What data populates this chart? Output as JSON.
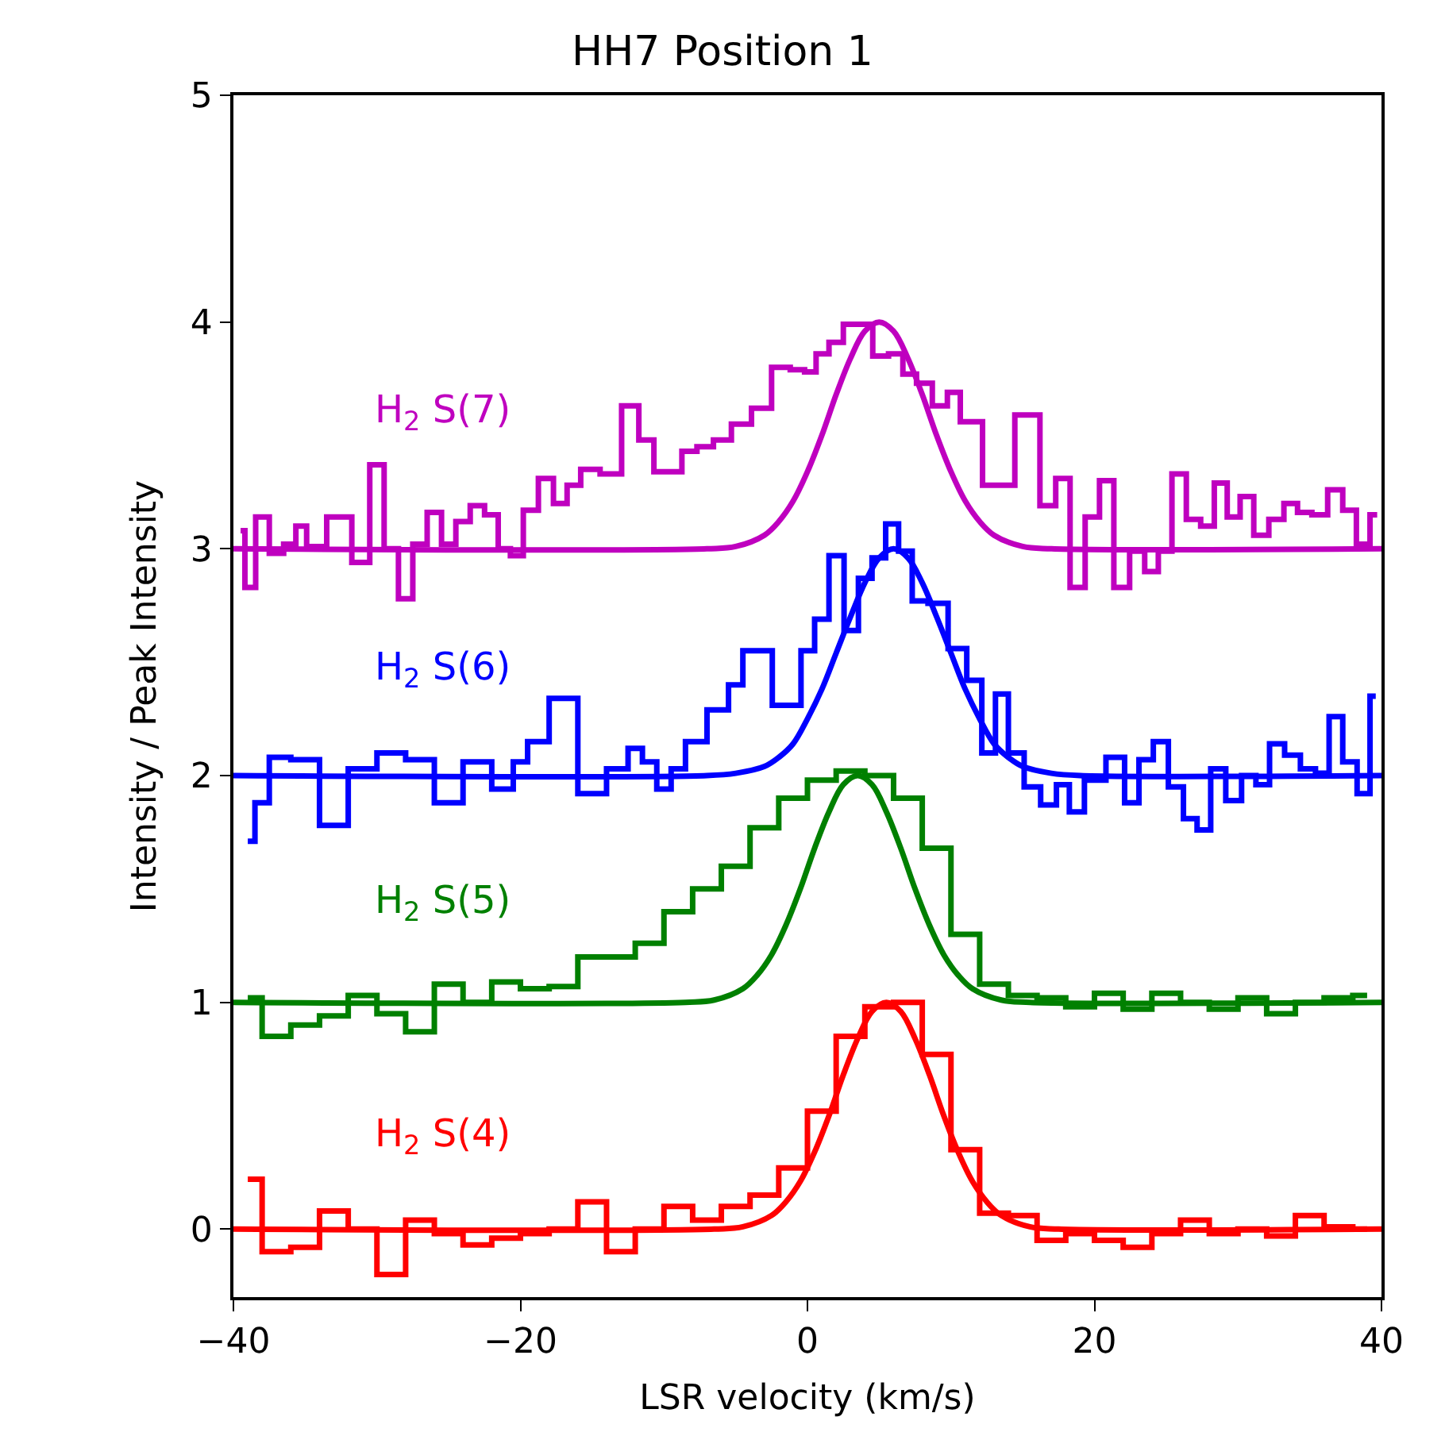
{
  "chart_data": {
    "type": "step",
    "title": "HH7 Position 1",
    "xlabel": "LSR velocity (km/s)",
    "ylabel": "Intensity / Peak Intensity",
    "xlim": [
      -40,
      40
    ],
    "ylim": [
      -0.3,
      5
    ],
    "xticks": [
      {
        "value": -40,
        "label": "−40"
      },
      {
        "value": -20,
        "label": "−20"
      },
      0,
      20,
      40
    ],
    "yticks": [
      0,
      1,
      2,
      3,
      4,
      5
    ],
    "legend": false,
    "series": [
      {
        "name": "H$_{2}$ S(4)",
        "color": "#ff0000",
        "x": [
          -39,
          -37,
          -35,
          -33,
          -31,
          -29,
          -27,
          -25,
          -23,
          -21,
          -19,
          -17,
          -15,
          -13,
          -11,
          -9,
          -7,
          -5,
          -3,
          -1,
          1,
          3,
          5,
          7,
          9,
          11,
          13,
          15,
          17,
          19,
          21,
          23,
          25,
          27,
          29,
          31,
          33,
          35,
          37,
          39
        ],
        "values": [
          0.22,
          -0.1,
          -0.08,
          0.08,
          0.0,
          -0.2,
          0.04,
          -0.02,
          -0.07,
          -0.04,
          -0.02,
          0.0,
          0.12,
          -0.1,
          0.0,
          0.1,
          0.04,
          0.1,
          0.15,
          0.27,
          0.52,
          0.85,
          0.98,
          1.0,
          0.77,
          0.35,
          0.07,
          0.06,
          -0.05,
          -0.02,
          -0.05,
          -0.08,
          -0.02,
          0.04,
          -0.02,
          0.0,
          -0.03,
          0.06,
          0.01,
          0.0
        ]
      },
      {
        "type": "line",
        "color": "#ff0000",
        "x": [
          -40,
          -6.5,
          -4.5,
          -2.5,
          -1.5,
          -0.5,
          0.5,
          1.5,
          2.5,
          3.5,
          4.5,
          5.5,
          6.5,
          7.5,
          8.5,
          9.5,
          10.5,
          11.5,
          12.5,
          13.5,
          15.5,
          17.5,
          40
        ],
        "values": [
          0,
          0.0,
          0.01,
          0.06,
          0.12,
          0.21,
          0.34,
          0.5,
          0.68,
          0.84,
          0.96,
          1,
          0.96,
          0.84,
          0.68,
          0.5,
          0.34,
          0.21,
          0.12,
          0.06,
          0.01,
          0.0,
          0
        ]
      },
      {
        "name": "H$_{2}$ S(5)",
        "color": "#008000",
        "x": [
          -39,
          -37,
          -35,
          -33,
          -31,
          -29,
          -27,
          -25,
          -23,
          -21,
          -19,
          -17,
          -15,
          -13,
          -11,
          -9,
          -7,
          -5,
          -3,
          -1,
          1,
          3,
          5,
          7,
          9,
          11,
          13,
          15,
          17,
          19,
          21,
          23,
          25,
          27,
          29,
          31,
          33,
          35,
          37,
          39
        ],
        "values": [
          1.02,
          0.85,
          0.9,
          0.94,
          1.03,
          0.95,
          0.87,
          1.08,
          1.0,
          1.09,
          1.06,
          1.07,
          1.2,
          1.2,
          1.26,
          1.4,
          1.5,
          1.6,
          1.77,
          1.9,
          1.98,
          2.02,
          2.0,
          1.9,
          1.68,
          1.3,
          1.08,
          1.03,
          1.02,
          0.98,
          1.04,
          0.97,
          1.04,
          1.0,
          0.97,
          1.02,
          0.95,
          1.0,
          1.02,
          1.03
        ]
      },
      {
        "type": "line",
        "color": "#008000",
        "x": [
          -40,
          -8.5,
          -6.5,
          -4.5,
          -3.5,
          -2.5,
          -1.5,
          -0.5,
          0.5,
          1.5,
          2.5,
          3.5,
          4.5,
          5.5,
          6.5,
          7.5,
          8.5,
          9.5,
          10.5,
          11.5,
          13.5,
          15.5,
          40
        ],
        "values": [
          1,
          1.0,
          1.01,
          1.06,
          1.12,
          1.21,
          1.34,
          1.5,
          1.68,
          1.84,
          1.96,
          2,
          1.96,
          1.84,
          1.68,
          1.5,
          1.34,
          1.21,
          1.12,
          1.06,
          1.01,
          1.0,
          1
        ]
      },
      {
        "name": "H$_{2}$ S(6)",
        "color": "#0000ff",
        "x": [
          -39,
          -38,
          -37,
          -35,
          -33,
          -31,
          -29,
          -27,
          -25,
          -23,
          -21,
          -20,
          -19,
          -17,
          -15,
          -13,
          -12,
          -11,
          -10,
          -9,
          -8,
          -6,
          -5,
          -4,
          -0.9,
          0,
          1,
          2,
          3.1,
          4,
          5,
          5.9,
          6.8,
          7.8,
          9,
          10.6,
          11.6,
          12.7,
          13.5,
          14.5,
          15.7,
          16.8,
          17.9,
          18.6,
          20,
          21.6,
          22.6,
          23.6,
          24.6,
          25.7,
          26.7,
          27.6,
          28.6,
          29.7,
          30.8,
          31.7,
          32.7,
          33.8,
          34.9,
          35.9,
          36.8,
          37.8,
          38.8,
          39.6
        ],
        "values": [
          1.71,
          1.88,
          2.08,
          2.07,
          1.78,
          2.03,
          2.1,
          2.07,
          1.88,
          2.06,
          1.94,
          2.06,
          2.15,
          2.34,
          1.92,
          2.03,
          2.12,
          2.06,
          1.94,
          2.03,
          2.15,
          2.29,
          2.4,
          2.55,
          2.31,
          2.55,
          2.69,
          2.97,
          2.64,
          2.87,
          2.96,
          3.11,
          2.99,
          2.77,
          2.76,
          2.56,
          2.42,
          2.1,
          2.36,
          2.1,
          1.95,
          1.87,
          1.96,
          1.84,
          1.98,
          2.08,
          1.88,
          2.07,
          2.15,
          1.95,
          1.81,
          1.76,
          2.03,
          1.89,
          2.0,
          1.96,
          2.14,
          2.09,
          2.03,
          2.01,
          2.26,
          2.06,
          1.92,
          2.35
        ]
      },
      {
        "type": "line",
        "color": "#0000ff",
        "x": [
          -40,
          -7,
          -5,
          -3,
          -2,
          -1,
          0,
          1,
          2,
          3,
          4,
          5,
          6,
          7,
          8,
          9,
          10,
          11,
          12,
          13,
          14,
          15,
          17,
          19,
          40
        ],
        "values": [
          2,
          2.0,
          2.01,
          2.04,
          2.08,
          2.14,
          2.25,
          2.38,
          2.54,
          2.7,
          2.85,
          2.96,
          3,
          2.96,
          2.85,
          2.7,
          2.54,
          2.38,
          2.25,
          2.14,
          2.08,
          2.04,
          2.01,
          2.0,
          2
        ]
      },
      {
        "name": "H$_{2}$ S(7)",
        "color": "#bf00bf",
        "x": [
          -39.5,
          -38.9,
          -38,
          -37,
          -36,
          -35.3,
          -34.5,
          -32.5,
          -31,
          -30,
          -29,
          -28,
          -27,
          -26,
          -25,
          -24,
          -23,
          -22,
          -21.1,
          -20.3,
          -19.3,
          -18.2,
          -17.2,
          -16.3,
          -15.3,
          -13.6,
          -12.3,
          -11.2,
          -10.2,
          -9.2,
          -8.3,
          -7.1,
          -6,
          -4.6,
          -3.2,
          -1.8,
          -0.6,
          0.2,
          1,
          2,
          3,
          4,
          5.1,
          6.2,
          7.1,
          8.1,
          9.3,
          10.2,
          11.1,
          13.3,
          15.6,
          16.8,
          17.8,
          18.8,
          19.9,
          20.8,
          21.9,
          23,
          24,
          24.9,
          25.9,
          26.9,
          27.9,
          28.8,
          29.7,
          30.6,
          31.6,
          32.7,
          33.7,
          34.6,
          35.7,
          36.8,
          37.8,
          38.7,
          39.7
        ],
        "values": [
          3.08,
          2.83,
          3.14,
          2.98,
          3.02,
          3.1,
          3.01,
          3.14,
          2.94,
          3.37,
          3.0,
          2.78,
          3.02,
          3.16,
          3.02,
          3.12,
          3.19,
          3.15,
          3.0,
          2.97,
          3.17,
          3.31,
          3.2,
          3.28,
          3.35,
          3.33,
          3.63,
          3.48,
          3.34,
          3.34,
          3.43,
          3.45,
          3.48,
          3.55,
          3.62,
          3.8,
          3.79,
          3.78,
          3.86,
          3.91,
          3.99,
          3.99,
          3.85,
          3.86,
          3.77,
          3.73,
          3.63,
          3.69,
          3.56,
          3.28,
          3.59,
          3.19,
          3.31,
          2.83,
          3.14,
          3.3,
          2.83,
          2.99,
          2.9,
          2.99,
          3.33,
          3.13,
          3.1,
          3.29,
          3.14,
          3.23,
          3.06,
          3.13,
          3.2,
          3.16,
          3.15,
          3.26,
          3.17,
          3.02,
          3.15
        ]
      },
      {
        "type": "line",
        "color": "#bf00bf",
        "x": [
          -40,
          -7,
          -5,
          -3,
          -2,
          -1,
          0,
          1,
          2,
          3,
          4,
          5,
          6,
          7,
          8,
          9,
          10,
          11,
          12,
          13,
          15,
          17,
          40
        ],
        "values": [
          3,
          3.0,
          3.01,
          3.06,
          3.12,
          3.21,
          3.34,
          3.5,
          3.68,
          3.84,
          3.96,
          4,
          3.96,
          3.84,
          3.68,
          3.5,
          3.34,
          3.21,
          3.12,
          3.06,
          3.01,
          3.0,
          3
        ]
      }
    ]
  }
}
